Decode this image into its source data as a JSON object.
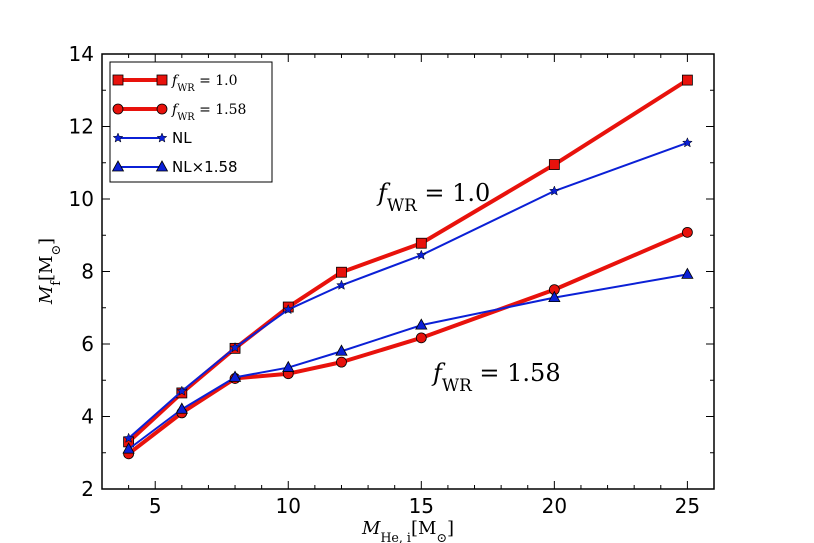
{
  "chart_data": {
    "type": "line",
    "title": "",
    "xlabel": "M_He,i[M_⊙]",
    "ylabel": "M_f[M_⊙]",
    "xlim": [
      3,
      26
    ],
    "ylim": [
      2,
      14
    ],
    "x_ticks": [
      5,
      10,
      15,
      20,
      25
    ],
    "y_ticks": [
      2,
      4,
      6,
      8,
      10,
      12,
      14
    ],
    "x": [
      4,
      6,
      8,
      10,
      12,
      15,
      20,
      25
    ],
    "series": [
      {
        "name": "f_WR = 1.0",
        "color": "#e8120c",
        "marker": "square",
        "line_width": "thick",
        "values": [
          3.3,
          4.65,
          5.88,
          7.02,
          7.98,
          8.78,
          10.95,
          13.28
        ]
      },
      {
        "name": "f_WR = 1.58",
        "color": "#e8120c",
        "marker": "circle",
        "line_width": "thick",
        "values": [
          2.97,
          4.1,
          5.05,
          5.18,
          5.5,
          6.17,
          7.5,
          9.08
        ]
      },
      {
        "name": "NL",
        "color": "#0b20d6",
        "marker": "star",
        "line_width": "thin",
        "values": [
          3.4,
          4.7,
          5.9,
          6.95,
          7.62,
          8.45,
          10.22,
          11.55
        ]
      },
      {
        "name": "NL×1.58",
        "color": "#0b20d6",
        "marker": "triangle",
        "line_width": "thin",
        "values": [
          3.1,
          4.2,
          5.08,
          5.35,
          5.8,
          6.52,
          7.28,
          7.92
        ]
      }
    ],
    "legend": {
      "position": "top-left",
      "entries": [
        {
          "prefix": "f",
          "sub": "WR",
          "rest": " = 1.0"
        },
        {
          "prefix": "f",
          "sub": "WR",
          "rest": " = 1.58"
        },
        {
          "prefix": "NL",
          "sub": "",
          "rest": ""
        },
        {
          "prefix": "NL×1.58",
          "sub": "",
          "rest": ""
        }
      ]
    },
    "annotations": [
      {
        "prefix": "f",
        "sub": "WR",
        "rest": " = 1.0",
        "near": "upper series"
      },
      {
        "prefix": "f",
        "sub": "WR",
        "rest": " = 1.58",
        "near": "lower series"
      }
    ],
    "axis_label_parts": {
      "x": {
        "prefix": "M",
        "sub": "He, i",
        "rest": "[M",
        "sub2": "⊙",
        "end": "]"
      },
      "y": {
        "prefix": "M",
        "sub": "f",
        "rest": "[M",
        "sub2": "⊙",
        "end": "]"
      }
    }
  }
}
